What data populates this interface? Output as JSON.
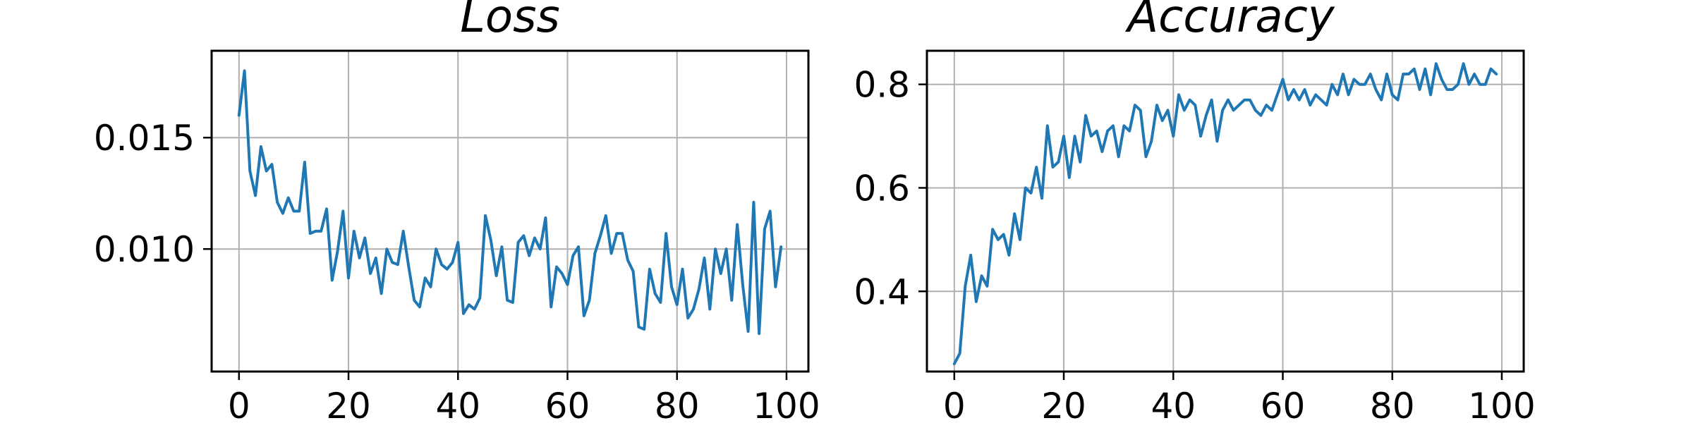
{
  "chart_data": [
    {
      "type": "line",
      "title": "Loss",
      "xlabel": "",
      "ylabel": "",
      "xlim": [
        -5,
        104
      ],
      "ylim": [
        0.0045,
        0.0189
      ],
      "xticks": [
        0,
        20,
        40,
        60,
        80,
        100
      ],
      "yticks": [
        0.01,
        0.015
      ],
      "xtick_labels": [
        "0",
        "20",
        "40",
        "60",
        "80",
        "100"
      ],
      "ytick_labels": [
        "0.010",
        "0.015"
      ],
      "grid": true,
      "line_color": "#1f77b4",
      "series": [
        {
          "x": [
            0,
            1,
            2,
            3,
            4,
            5,
            6,
            7,
            8,
            9,
            10,
            11,
            12,
            13,
            14,
            15,
            16,
            17,
            18,
            19,
            20,
            21,
            22,
            23,
            24,
            25,
            26,
            27,
            28,
            29,
            30,
            31,
            32,
            33,
            34,
            35,
            36,
            37,
            38,
            39,
            40,
            41,
            42,
            43,
            44,
            45,
            46,
            47,
            48,
            49,
            50,
            51,
            52,
            53,
            54,
            55,
            56,
            57,
            58,
            59,
            60,
            61,
            62,
            63,
            64,
            65,
            66,
            67,
            68,
            69,
            70,
            71,
            72,
            73,
            74,
            75,
            76,
            77,
            78,
            79,
            80,
            81,
            82,
            83,
            84,
            85,
            86,
            87,
            88,
            89,
            90,
            91,
            92,
            93,
            94,
            95,
            96,
            97,
            98,
            99
          ],
          "y": [
            0.016,
            0.018,
            0.0135,
            0.0124,
            0.0146,
            0.0135,
            0.0138,
            0.0121,
            0.0116,
            0.0123,
            0.0117,
            0.0117,
            0.0139,
            0.0107,
            0.0108,
            0.0108,
            0.0118,
            0.0086,
            0.0099,
            0.0117,
            0.0087,
            0.0108,
            0.0096,
            0.0105,
            0.0089,
            0.0096,
            0.008,
            0.01,
            0.0094,
            0.0093,
            0.0108,
            0.0092,
            0.0077,
            0.0074,
            0.0087,
            0.0083,
            0.01,
            0.0093,
            0.0091,
            0.0094,
            0.0103,
            0.0071,
            0.0075,
            0.0073,
            0.0078,
            0.0115,
            0.0104,
            0.0088,
            0.0101,
            0.0077,
            0.0076,
            0.0103,
            0.0106,
            0.0097,
            0.0105,
            0.01,
            0.0114,
            0.0074,
            0.0092,
            0.0089,
            0.0084,
            0.0097,
            0.0101,
            0.007,
            0.0077,
            0.0098,
            0.0106,
            0.0115,
            0.0098,
            0.0107,
            0.0107,
            0.0095,
            0.009,
            0.0065,
            0.0064,
            0.0091,
            0.008,
            0.0076,
            0.0107,
            0.0083,
            0.0075,
            0.0091,
            0.0069,
            0.0073,
            0.0082,
            0.0096,
            0.0073,
            0.01,
            0.0089,
            0.01,
            0.0077,
            0.0111,
            0.0084,
            0.0063,
            0.0121,
            0.0062,
            0.0109,
            0.0117,
            0.0083,
            0.0101
          ]
        }
      ]
    },
    {
      "type": "line",
      "title": "Accuracy",
      "xlabel": "",
      "ylabel": "",
      "xlim": [
        -5,
        104
      ],
      "ylim": [
        0.245,
        0.865
      ],
      "xticks": [
        0,
        20,
        40,
        60,
        80,
        100
      ],
      "yticks": [
        0.4,
        0.6,
        0.8
      ],
      "xtick_labels": [
        "0",
        "20",
        "40",
        "60",
        "80",
        "100"
      ],
      "ytick_labels": [
        "0.4",
        "0.6",
        "0.8"
      ],
      "grid": true,
      "line_color": "#1f77b4",
      "series": [
        {
          "x": [
            0,
            1,
            2,
            3,
            4,
            5,
            6,
            7,
            8,
            9,
            10,
            11,
            12,
            13,
            14,
            15,
            16,
            17,
            18,
            19,
            20,
            21,
            22,
            23,
            24,
            25,
            26,
            27,
            28,
            29,
            30,
            31,
            32,
            33,
            34,
            35,
            36,
            37,
            38,
            39,
            40,
            41,
            42,
            43,
            44,
            45,
            46,
            47,
            48,
            49,
            50,
            51,
            52,
            53,
            54,
            55,
            56,
            57,
            58,
            59,
            60,
            61,
            62,
            63,
            64,
            65,
            66,
            67,
            68,
            69,
            70,
            71,
            72,
            73,
            74,
            75,
            76,
            77,
            78,
            79,
            80,
            81,
            82,
            83,
            84,
            85,
            86,
            87,
            88,
            89,
            90,
            91,
            92,
            93,
            94,
            95,
            96,
            97,
            98,
            99
          ],
          "y": [
            0.26,
            0.28,
            0.41,
            0.47,
            0.38,
            0.43,
            0.41,
            0.52,
            0.5,
            0.51,
            0.47,
            0.55,
            0.5,
            0.6,
            0.59,
            0.64,
            0.58,
            0.72,
            0.64,
            0.65,
            0.7,
            0.62,
            0.7,
            0.65,
            0.74,
            0.7,
            0.71,
            0.67,
            0.71,
            0.72,
            0.66,
            0.72,
            0.71,
            0.76,
            0.75,
            0.66,
            0.69,
            0.76,
            0.73,
            0.75,
            0.7,
            0.78,
            0.75,
            0.77,
            0.76,
            0.7,
            0.74,
            0.77,
            0.69,
            0.75,
            0.77,
            0.75,
            0.76,
            0.77,
            0.77,
            0.75,
            0.74,
            0.76,
            0.75,
            0.78,
            0.81,
            0.77,
            0.79,
            0.77,
            0.79,
            0.76,
            0.78,
            0.77,
            0.76,
            0.8,
            0.78,
            0.82,
            0.78,
            0.81,
            0.8,
            0.8,
            0.82,
            0.79,
            0.77,
            0.82,
            0.78,
            0.77,
            0.82,
            0.82,
            0.83,
            0.79,
            0.83,
            0.78,
            0.84,
            0.81,
            0.79,
            0.79,
            0.8,
            0.84,
            0.8,
            0.82,
            0.8,
            0.8,
            0.83,
            0.82
          ]
        }
      ]
    }
  ]
}
